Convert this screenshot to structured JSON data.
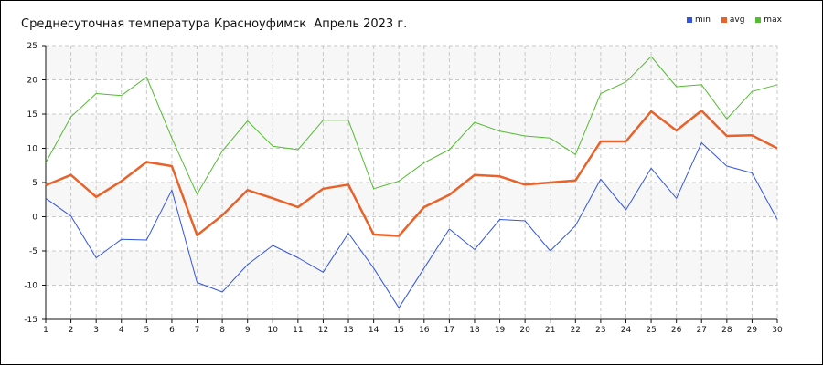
{
  "chart_data": {
    "type": "line",
    "title": "Среднесуточная температура Красноуфимск  Апрель 2023 г.",
    "xlabel": "",
    "ylabel": "",
    "x": [
      1,
      2,
      3,
      4,
      5,
      6,
      7,
      8,
      9,
      10,
      11,
      12,
      13,
      14,
      15,
      16,
      17,
      18,
      19,
      20,
      21,
      22,
      23,
      24,
      25,
      26,
      27,
      28,
      29,
      30
    ],
    "ylim": [
      -15,
      25
    ],
    "yticks": [
      -15,
      -10,
      -5,
      0,
      5,
      10,
      15,
      20,
      25
    ],
    "grid": true,
    "legend_position": "top-right",
    "series": [
      {
        "name": "min",
        "color": "#3355dd",
        "values": [
          2.7,
          0.1,
          -6.0,
          -3.3,
          -3.4,
          3.9,
          -9.6,
          -11.0,
          -7.0,
          -4.2,
          -6.0,
          -8.1,
          -2.4,
          -7.5,
          -13.3,
          -7.5,
          -1.8,
          -4.8,
          -0.4,
          -0.6,
          -5.0,
          -1.3,
          5.5,
          1.0,
          7.1,
          2.7,
          10.8,
          7.4,
          6.4,
          -0.4
        ]
      },
      {
        "name": "avg",
        "color": "#e8622a",
        "values": [
          4.6,
          6.1,
          2.9,
          5.2,
          8.0,
          7.4,
          -2.7,
          0.2,
          3.9,
          2.7,
          1.4,
          4.1,
          4.7,
          -2.6,
          -2.8,
          1.4,
          3.2,
          6.1,
          5.9,
          4.7,
          5.0,
          5.3,
          11.0,
          11.0,
          15.4,
          12.6,
          15.5,
          11.8,
          11.9,
          10.0
        ]
      },
      {
        "name": "max",
        "color": "#55bb33",
        "values": [
          7.9,
          14.6,
          18.0,
          17.7,
          20.4,
          11.5,
          3.3,
          9.6,
          14.0,
          10.3,
          9.8,
          14.1,
          14.1,
          4.1,
          5.2,
          7.9,
          9.8,
          13.8,
          12.5,
          11.8,
          11.5,
          9.1,
          18.0,
          19.7,
          23.4,
          19.0,
          19.3,
          14.3,
          18.3,
          19.3
        ]
      }
    ]
  }
}
